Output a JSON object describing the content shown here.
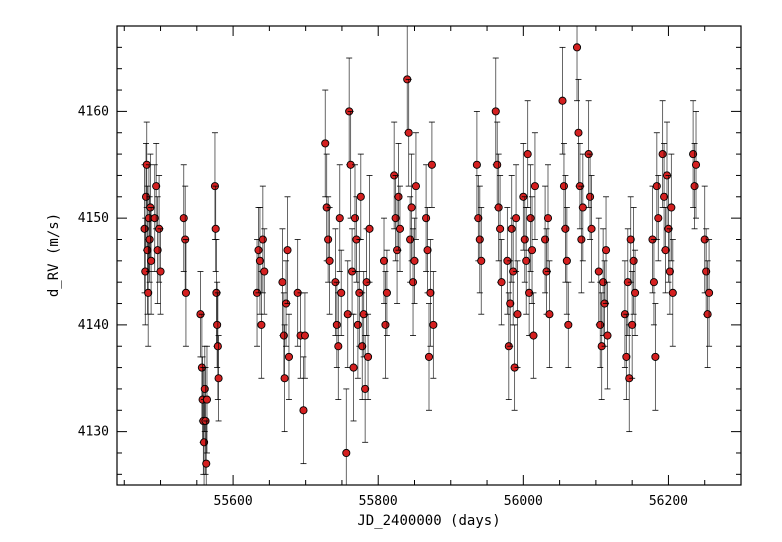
{
  "chart_data": {
    "type": "scatter",
    "title": "",
    "xlabel": "JD_2400000 (days)",
    "ylabel": "d_RV (m/s)",
    "xlim": [
      55440,
      56300
    ],
    "ylim": [
      4125,
      4168
    ],
    "x_ticks": [
      55600,
      55800,
      56000,
      56200
    ],
    "y_ticks": [
      4130,
      4140,
      4150,
      4160
    ],
    "x_tick_labels": [
      "55600",
      "55800",
      "56000",
      "56200"
    ],
    "y_tick_labels": [
      "4130",
      "4140",
      "4150",
      "4160"
    ],
    "grid": false,
    "legend": "none",
    "marker_color": "#d42020",
    "marker_edge_color": "#000000",
    "errorbar_color": "#000000",
    "series": [
      {
        "values": [
          {
            "x": 55478,
            "y": 4149,
            "err": 6
          },
          {
            "x": 55479,
            "y": 4145,
            "err": 5
          },
          {
            "x": 55480,
            "y": 4152,
            "err": 5
          },
          {
            "x": 55481,
            "y": 4155,
            "err": 4
          },
          {
            "x": 55482,
            "y": 4147,
            "err": 6
          },
          {
            "x": 55483,
            "y": 4143,
            "err": 5
          },
          {
            "x": 55484,
            "y": 4150,
            "err": 5
          },
          {
            "x": 55485,
            "y": 4148,
            "err": 4
          },
          {
            "x": 55486,
            "y": 4151,
            "err": 5
          },
          {
            "x": 55487,
            "y": 4146,
            "err": 5
          },
          {
            "x": 55492,
            "y": 4150,
            "err": 5
          },
          {
            "x": 55494,
            "y": 4153,
            "err": 4
          },
          {
            "x": 55496,
            "y": 4147,
            "err": 5
          },
          {
            "x": 55498,
            "y": 4149,
            "err": 5
          },
          {
            "x": 55500,
            "y": 4145,
            "err": 4
          },
          {
            "x": 55532,
            "y": 4150,
            "err": 5
          },
          {
            "x": 55534,
            "y": 4148,
            "err": 5
          },
          {
            "x": 55535,
            "y": 4143,
            "err": 5
          },
          {
            "x": 55555,
            "y": 4141,
            "err": 4
          },
          {
            "x": 55557,
            "y": 4136,
            "err": 5
          },
          {
            "x": 55558,
            "y": 4133,
            "err": 4
          },
          {
            "x": 55559,
            "y": 4131,
            "err": 5
          },
          {
            "x": 55560,
            "y": 4129,
            "err": 4
          },
          {
            "x": 55561,
            "y": 4134,
            "err": 4
          },
          {
            "x": 55562,
            "y": 4131,
            "err": 5
          },
          {
            "x": 55563,
            "y": 4127,
            "err": 4
          },
          {
            "x": 55564,
            "y": 4133,
            "err": 5
          },
          {
            "x": 55575,
            "y": 4153,
            "err": 5
          },
          {
            "x": 55576,
            "y": 4149,
            "err": 4
          },
          {
            "x": 55577,
            "y": 4143,
            "err": 5
          },
          {
            "x": 55578,
            "y": 4140,
            "err": 4
          },
          {
            "x": 55579,
            "y": 4138,
            "err": 5
          },
          {
            "x": 55580,
            "y": 4135,
            "err": 4
          },
          {
            "x": 55633,
            "y": 4143,
            "err": 5
          },
          {
            "x": 55635,
            "y": 4147,
            "err": 4
          },
          {
            "x": 55637,
            "y": 4146,
            "err": 5
          },
          {
            "x": 55639,
            "y": 4140,
            "err": 5
          },
          {
            "x": 55641,
            "y": 4148,
            "err": 5
          },
          {
            "x": 55643,
            "y": 4145,
            "err": 4
          },
          {
            "x": 55668,
            "y": 4144,
            "err": 5
          },
          {
            "x": 55670,
            "y": 4139,
            "err": 4
          },
          {
            "x": 55671,
            "y": 4135,
            "err": 5
          },
          {
            "x": 55673,
            "y": 4142,
            "err": 4
          },
          {
            "x": 55675,
            "y": 4147,
            "err": 5
          },
          {
            "x": 55677,
            "y": 4137,
            "err": 4
          },
          {
            "x": 55689,
            "y": 4143,
            "err": 5
          },
          {
            "x": 55693,
            "y": 4139,
            "err": 4
          },
          {
            "x": 55697,
            "y": 4132,
            "err": 5
          },
          {
            "x": 55699,
            "y": 4139,
            "err": 4
          },
          {
            "x": 55727,
            "y": 4157,
            "err": 5
          },
          {
            "x": 55729,
            "y": 4151,
            "err": 5
          },
          {
            "x": 55731,
            "y": 4148,
            "err": 4
          },
          {
            "x": 55733,
            "y": 4146,
            "err": 5
          },
          {
            "x": 55741,
            "y": 4144,
            "err": 5
          },
          {
            "x": 55743,
            "y": 4140,
            "err": 4
          },
          {
            "x": 55745,
            "y": 4138,
            "err": 5
          },
          {
            "x": 55747,
            "y": 4150,
            "err": 5
          },
          {
            "x": 55749,
            "y": 4143,
            "err": 4
          },
          {
            "x": 55756,
            "y": 4128,
            "err": 6
          },
          {
            "x": 55758,
            "y": 4141,
            "err": 5
          },
          {
            "x": 55760,
            "y": 4160,
            "err": 5
          },
          {
            "x": 55762,
            "y": 4155,
            "err": 5
          },
          {
            "x": 55764,
            "y": 4145,
            "err": 4
          },
          {
            "x": 55766,
            "y": 4136,
            "err": 5
          },
          {
            "x": 55768,
            "y": 4150,
            "err": 5
          },
          {
            "x": 55770,
            "y": 4148,
            "err": 4
          },
          {
            "x": 55772,
            "y": 4140,
            "err": 5
          },
          {
            "x": 55774,
            "y": 4143,
            "err": 5
          },
          {
            "x": 55776,
            "y": 4152,
            "err": 4
          },
          {
            "x": 55778,
            "y": 4138,
            "err": 5
          },
          {
            "x": 55780,
            "y": 4141,
            "err": 4
          },
          {
            "x": 55782,
            "y": 4134,
            "err": 5
          },
          {
            "x": 55784,
            "y": 4144,
            "err": 5
          },
          {
            "x": 55786,
            "y": 4137,
            "err": 4
          },
          {
            "x": 55788,
            "y": 4149,
            "err": 5
          },
          {
            "x": 55808,
            "y": 4146,
            "err": 4
          },
          {
            "x": 55810,
            "y": 4140,
            "err": 5
          },
          {
            "x": 55812,
            "y": 4143,
            "err": 4
          },
          {
            "x": 55822,
            "y": 4154,
            "err": 5
          },
          {
            "x": 55824,
            "y": 4150,
            "err": 4
          },
          {
            "x": 55826,
            "y": 4147,
            "err": 5
          },
          {
            "x": 55828,
            "y": 4152,
            "err": 5
          },
          {
            "x": 55830,
            "y": 4149,
            "err": 4
          },
          {
            "x": 55840,
            "y": 4163,
            "err": 5
          },
          {
            "x": 55842,
            "y": 4158,
            "err": 5
          },
          {
            "x": 55844,
            "y": 4148,
            "err": 4
          },
          {
            "x": 55846,
            "y": 4151,
            "err": 5
          },
          {
            "x": 55848,
            "y": 4144,
            "err": 5
          },
          {
            "x": 55850,
            "y": 4146,
            "err": 4
          },
          {
            "x": 55852,
            "y": 4153,
            "err": 5
          },
          {
            "x": 55866,
            "y": 4150,
            "err": 5
          },
          {
            "x": 55868,
            "y": 4147,
            "err": 4
          },
          {
            "x": 55870,
            "y": 4137,
            "err": 5
          },
          {
            "x": 55872,
            "y": 4143,
            "err": 5
          },
          {
            "x": 55874,
            "y": 4155,
            "err": 4
          },
          {
            "x": 55876,
            "y": 4140,
            "err": 5
          },
          {
            "x": 55936,
            "y": 4155,
            "err": 5
          },
          {
            "x": 55938,
            "y": 4150,
            "err": 4
          },
          {
            "x": 55940,
            "y": 4148,
            "err": 5
          },
          {
            "x": 55942,
            "y": 4146,
            "err": 5
          },
          {
            "x": 55962,
            "y": 4160,
            "err": 5
          },
          {
            "x": 55964,
            "y": 4155,
            "err": 4
          },
          {
            "x": 55966,
            "y": 4151,
            "err": 5
          },
          {
            "x": 55968,
            "y": 4149,
            "err": 5
          },
          {
            "x": 55970,
            "y": 4144,
            "err": 4
          },
          {
            "x": 55978,
            "y": 4146,
            "err": 5
          },
          {
            "x": 55980,
            "y": 4138,
            "err": 5
          },
          {
            "x": 55982,
            "y": 4142,
            "err": 4
          },
          {
            "x": 55984,
            "y": 4149,
            "err": 5
          },
          {
            "x": 55986,
            "y": 4145,
            "err": 5
          },
          {
            "x": 55988,
            "y": 4136,
            "err": 4
          },
          {
            "x": 55990,
            "y": 4150,
            "err": 5
          },
          {
            "x": 55992,
            "y": 4141,
            "err": 5
          },
          {
            "x": 56000,
            "y": 4152,
            "err": 5
          },
          {
            "x": 56002,
            "y": 4148,
            "err": 4
          },
          {
            "x": 56004,
            "y": 4146,
            "err": 5
          },
          {
            "x": 56006,
            "y": 4156,
            "err": 5
          },
          {
            "x": 56008,
            "y": 4143,
            "err": 4
          },
          {
            "x": 56010,
            "y": 4150,
            "err": 5
          },
          {
            "x": 56012,
            "y": 4147,
            "err": 5
          },
          {
            "x": 56014,
            "y": 4139,
            "err": 4
          },
          {
            "x": 56016,
            "y": 4153,
            "err": 5
          },
          {
            "x": 56030,
            "y": 4148,
            "err": 5
          },
          {
            "x": 56032,
            "y": 4145,
            "err": 4
          },
          {
            "x": 56034,
            "y": 4150,
            "err": 5
          },
          {
            "x": 56036,
            "y": 4141,
            "err": 5
          },
          {
            "x": 56054,
            "y": 4161,
            "err": 5
          },
          {
            "x": 56056,
            "y": 4153,
            "err": 4
          },
          {
            "x": 56058,
            "y": 4149,
            "err": 5
          },
          {
            "x": 56060,
            "y": 4146,
            "err": 5
          },
          {
            "x": 56062,
            "y": 4140,
            "err": 4
          },
          {
            "x": 56074,
            "y": 4166,
            "err": 5
          },
          {
            "x": 56076,
            "y": 4158,
            "err": 5
          },
          {
            "x": 56078,
            "y": 4153,
            "err": 4
          },
          {
            "x": 56080,
            "y": 4148,
            "err": 5
          },
          {
            "x": 56082,
            "y": 4151,
            "err": 5
          },
          {
            "x": 56090,
            "y": 4156,
            "err": 5
          },
          {
            "x": 56092,
            "y": 4152,
            "err": 4
          },
          {
            "x": 56094,
            "y": 4149,
            "err": 5
          },
          {
            "x": 56104,
            "y": 4145,
            "err": 5
          },
          {
            "x": 56106,
            "y": 4140,
            "err": 4
          },
          {
            "x": 56108,
            "y": 4138,
            "err": 5
          },
          {
            "x": 56110,
            "y": 4144,
            "err": 5
          },
          {
            "x": 56112,
            "y": 4142,
            "err": 4
          },
          {
            "x": 56114,
            "y": 4147,
            "err": 5
          },
          {
            "x": 56116,
            "y": 4139,
            "err": 5
          },
          {
            "x": 56140,
            "y": 4141,
            "err": 5
          },
          {
            "x": 56142,
            "y": 4137,
            "err": 4
          },
          {
            "x": 56144,
            "y": 4144,
            "err": 5
          },
          {
            "x": 56146,
            "y": 4135,
            "err": 5
          },
          {
            "x": 56148,
            "y": 4148,
            "err": 4
          },
          {
            "x": 56150,
            "y": 4140,
            "err": 5
          },
          {
            "x": 56152,
            "y": 4146,
            "err": 5
          },
          {
            "x": 56154,
            "y": 4143,
            "err": 4
          },
          {
            "x": 56178,
            "y": 4148,
            "err": 5
          },
          {
            "x": 56180,
            "y": 4144,
            "err": 4
          },
          {
            "x": 56182,
            "y": 4137,
            "err": 5
          },
          {
            "x": 56184,
            "y": 4153,
            "err": 5
          },
          {
            "x": 56186,
            "y": 4150,
            "err": 4
          },
          {
            "x": 56192,
            "y": 4156,
            "err": 5
          },
          {
            "x": 56194,
            "y": 4152,
            "err": 5
          },
          {
            "x": 56196,
            "y": 4147,
            "err": 4
          },
          {
            "x": 56198,
            "y": 4154,
            "err": 5
          },
          {
            "x": 56200,
            "y": 4149,
            "err": 5
          },
          {
            "x": 56202,
            "y": 4145,
            "err": 4
          },
          {
            "x": 56204,
            "y": 4151,
            "err": 5
          },
          {
            "x": 56206,
            "y": 4143,
            "err": 5
          },
          {
            "x": 56234,
            "y": 4156,
            "err": 5
          },
          {
            "x": 56236,
            "y": 4153,
            "err": 4
          },
          {
            "x": 56238,
            "y": 4155,
            "err": 5
          },
          {
            "x": 56250,
            "y": 4148,
            "err": 5
          },
          {
            "x": 56252,
            "y": 4145,
            "err": 4
          },
          {
            "x": 56254,
            "y": 4141,
            "err": 5
          },
          {
            "x": 56256,
            "y": 4143,
            "err": 5
          }
        ]
      }
    ]
  }
}
